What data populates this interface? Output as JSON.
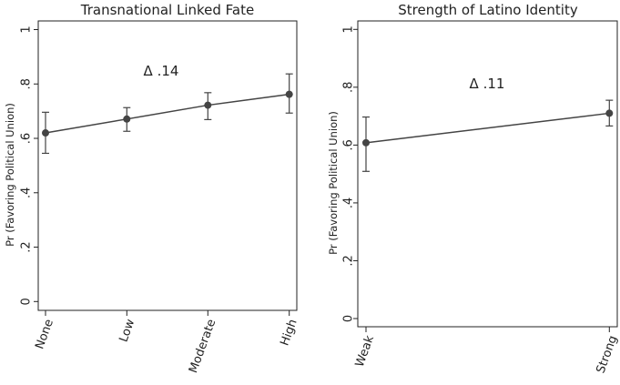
{
  "chart_data": [
    {
      "type": "line",
      "title": "Transnational Linked Fate",
      "ylabel": "Pr (Favoring Political Union)",
      "xlabel": "",
      "ylim": [
        0,
        1
      ],
      "yticks": [
        0,
        0.2,
        0.4,
        0.6,
        0.8,
        1
      ],
      "ytick_labels": [
        "0",
        ".2",
        ".4",
        ".6",
        ".8",
        "1"
      ],
      "categories": [
        "None",
        "Low",
        "Moderate",
        "High"
      ],
      "values": [
        0.62,
        0.671,
        0.722,
        0.762
      ],
      "ci_low": [
        0.545,
        0.626,
        0.669,
        0.693
      ],
      "ci_high": [
        0.696,
        0.713,
        0.768,
        0.837
      ],
      "annotation": "Δ .14",
      "grid": false,
      "color": "#444444"
    },
    {
      "type": "line",
      "title": "Strength of Latino Identity",
      "ylabel": "Pr (Favoring Political Union)",
      "xlabel": "",
      "ylim": [
        0,
        1
      ],
      "yticks": [
        0,
        0.2,
        0.4,
        0.6,
        0.8,
        1
      ],
      "ytick_labels": [
        "0",
        ".2",
        ".4",
        ".6",
        ".8",
        "1"
      ],
      "categories": [
        "Weak",
        "Strong"
      ],
      "values": [
        0.608,
        0.71
      ],
      "ci_low": [
        0.509,
        0.666
      ],
      "ci_high": [
        0.697,
        0.755
      ],
      "annotation": "Δ .11",
      "grid": false,
      "color": "#444444"
    }
  ]
}
